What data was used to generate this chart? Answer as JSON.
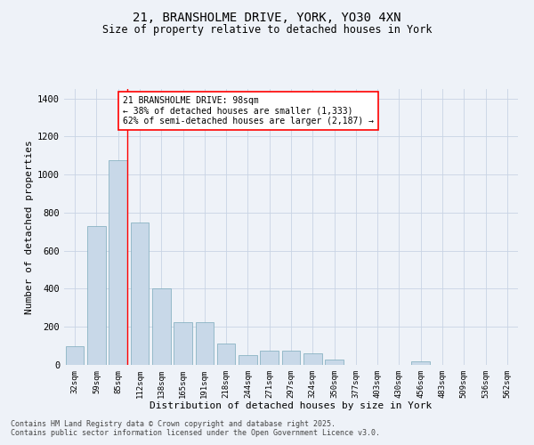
{
  "title_line1": "21, BRANSHOLME DRIVE, YORK, YO30 4XN",
  "title_line2": "Size of property relative to detached houses in York",
  "xlabel": "Distribution of detached houses by size in York",
  "ylabel": "Number of detached properties",
  "categories": [
    "32sqm",
    "59sqm",
    "85sqm",
    "112sqm",
    "138sqm",
    "165sqm",
    "191sqm",
    "218sqm",
    "244sqm",
    "271sqm",
    "297sqm",
    "324sqm",
    "350sqm",
    "377sqm",
    "403sqm",
    "430sqm",
    "456sqm",
    "483sqm",
    "509sqm",
    "536sqm",
    "562sqm"
  ],
  "values": [
    100,
    730,
    1075,
    750,
    400,
    225,
    225,
    110,
    50,
    75,
    75,
    60,
    30,
    0,
    0,
    0,
    20,
    0,
    0,
    0,
    0
  ],
  "bar_color": "#c8d8e8",
  "bar_edge_color": "#7aaabb",
  "grid_color": "#c8d4e4",
  "background_color": "#eef2f8",
  "vline_x_index": 2,
  "vline_color": "red",
  "annotation_text": "21 BRANSHOLME DRIVE: 98sqm\n← 38% of detached houses are smaller (1,333)\n62% of semi-detached houses are larger (2,187) →",
  "annotation_box_color": "white",
  "annotation_box_edgecolor": "red",
  "footnote_line1": "Contains HM Land Registry data © Crown copyright and database right 2025.",
  "footnote_line2": "Contains public sector information licensed under the Open Government Licence v3.0.",
  "ylim": [
    0,
    1450
  ],
  "yticks": [
    0,
    200,
    400,
    600,
    800,
    1000,
    1200,
    1400
  ]
}
